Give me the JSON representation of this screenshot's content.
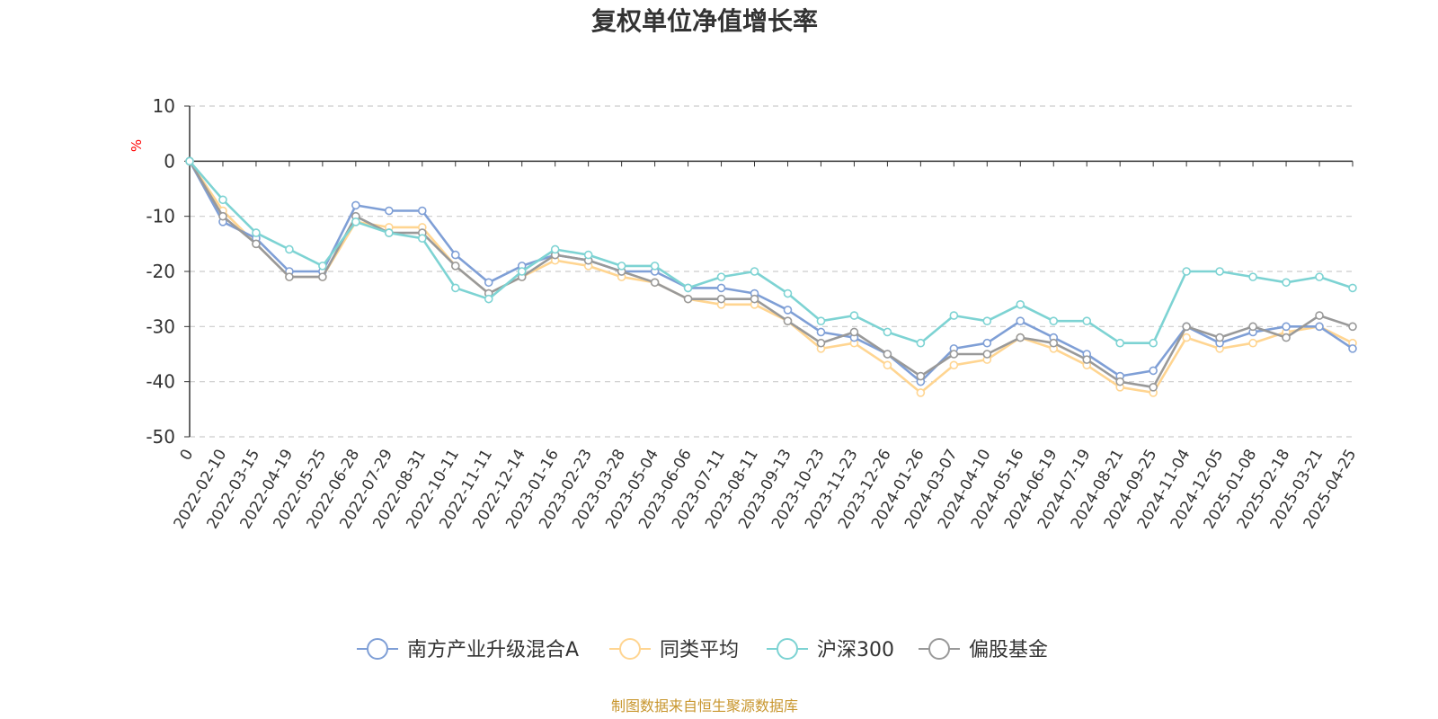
{
  "chart_data": {
    "type": "line",
    "title": "复权单位净值增长率",
    "ylabel": "%",
    "ylim": [
      -50,
      10
    ],
    "yticks": [
      10,
      0,
      -10,
      -20,
      -30,
      -40,
      -50
    ],
    "categories": [
      "0",
      "2022-02-10",
      "2022-03-15",
      "2022-04-19",
      "2022-05-25",
      "2022-06-28",
      "2022-07-29",
      "2022-08-31",
      "2022-10-11",
      "2022-11-11",
      "2022-12-14",
      "2023-01-16",
      "2023-02-23",
      "2023-03-28",
      "2023-05-04",
      "2023-06-06",
      "2023-07-11",
      "2023-08-11",
      "2023-09-13",
      "2023-10-23",
      "2023-11-23",
      "2023-12-26",
      "2024-01-26",
      "2024-03-07",
      "2024-04-10",
      "2024-05-16",
      "2024-06-19",
      "2024-07-19",
      "2024-08-21",
      "2024-09-25",
      "2024-11-04",
      "2024-12-05",
      "2025-01-08",
      "2025-02-18",
      "2025-03-21",
      "2025-04-25"
    ],
    "series": [
      {
        "name": "南方产业升级混合A",
        "color": "#7f9fd6",
        "values": [
          0,
          -11,
          -14,
          -20,
          -20,
          -8,
          -9,
          -9,
          -17,
          -22,
          -19,
          -17,
          -18,
          -20,
          -20,
          -23,
          -23,
          -24,
          -27,
          -31,
          -32,
          -35,
          -40,
          -34,
          -33,
          -29,
          -32,
          -35,
          -39,
          -38,
          -30,
          -33,
          -31,
          -30,
          -30,
          -34
        ]
      },
      {
        "name": "同类平均",
        "color": "#ffd591",
        "values": [
          0,
          -9,
          -15,
          -21,
          -21,
          -11,
          -12,
          -12,
          -19,
          -24,
          -21,
          -18,
          -19,
          -21,
          -22,
          -25,
          -26,
          -26,
          -29,
          -34,
          -33,
          -37,
          -42,
          -37,
          -36,
          -32,
          -34,
          -37,
          -41,
          -42,
          -32,
          -34,
          -33,
          -31,
          -30,
          -33
        ]
      },
      {
        "name": "沪深300",
        "color": "#7dd3d3",
        "values": [
          0,
          -7,
          -13,
          -16,
          -19,
          -11,
          -13,
          -14,
          -23,
          -25,
          -20,
          -16,
          -17,
          -19,
          -19,
          -23,
          -21,
          -20,
          -24,
          -29,
          -28,
          -31,
          -33,
          -28,
          -29,
          -26,
          -29,
          -29,
          -33,
          -33,
          -20,
          -20,
          -21,
          -22,
          -21,
          -23
        ]
      },
      {
        "name": "偏股基金",
        "color": "#999999",
        "values": [
          0,
          -10,
          -15,
          -21,
          -21,
          -10,
          -13,
          -13,
          -19,
          -24,
          -21,
          -17,
          -18,
          -20,
          -22,
          -25,
          -25,
          -25,
          -29,
          -33,
          -31,
          -35,
          -39,
          -35,
          -35,
          -32,
          -33,
          -36,
          -40,
          -41,
          -30,
          -32,
          -30,
          -32,
          -28,
          -30
        ]
      }
    ]
  },
  "legend": [
    "南方产业升级混合A",
    "同类平均",
    "沪深300",
    "偏股基金"
  ],
  "source": "制图数据来自恒生聚源数据库"
}
